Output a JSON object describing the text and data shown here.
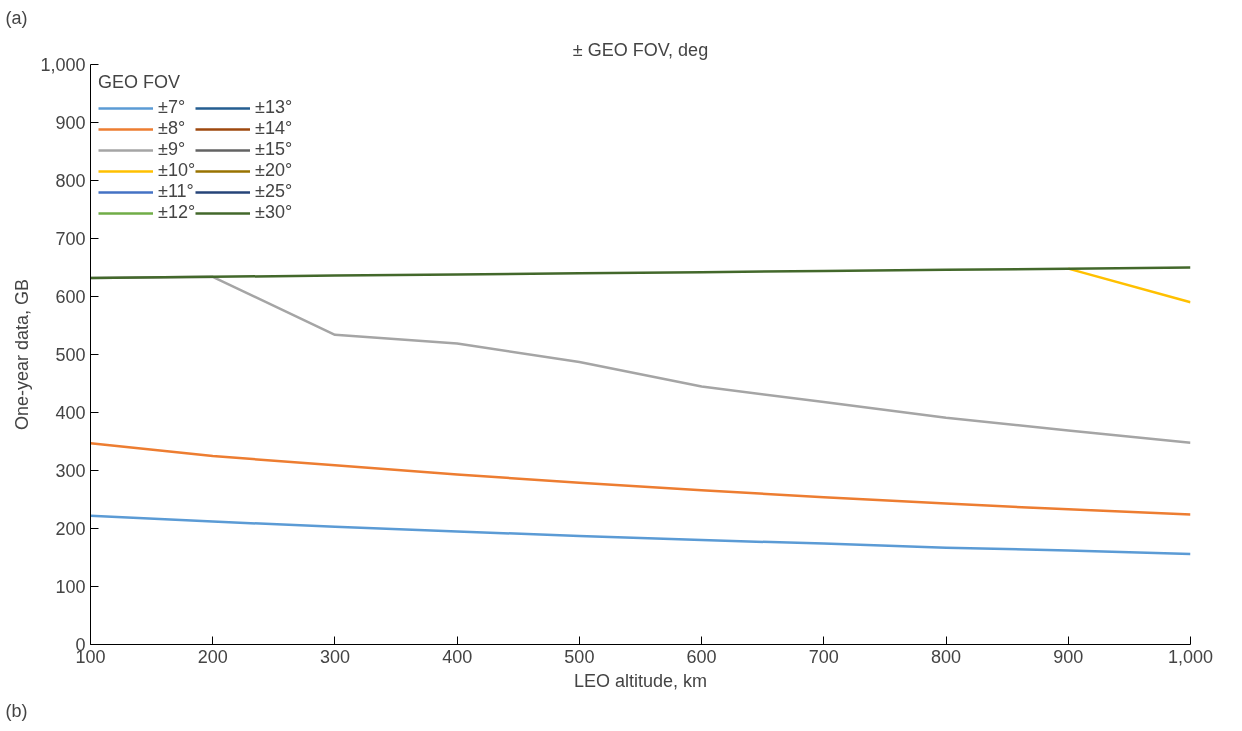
{
  "chart_data": {
    "type": "line",
    "title": "± GEO FOV, deg",
    "xlabel": "LEO altitude, km",
    "ylabel": "One-year data, GB",
    "legend_title": "GEO FOV",
    "annotations": [
      "(a)",
      "(b)"
    ],
    "x": [
      100,
      200,
      300,
      400,
      500,
      600,
      700,
      800,
      900,
      1000
    ],
    "xlim": [
      100,
      1000
    ],
    "xticks": [
      100,
      200,
      300,
      400,
      500,
      600,
      700,
      800,
      900,
      {
        "value": 1000,
        "label": "1,000"
      }
    ],
    "ylim": [
      0,
      1000
    ],
    "yticks": [
      0,
      100,
      200,
      300,
      400,
      500,
      600,
      700,
      800,
      900,
      {
        "value": 1000,
        "label": "1,000"
      }
    ],
    "grid": false,
    "legend": "top left",
    "marker": "none",
    "line_style": "solid",
    "series": [
      {
        "name": "±7°",
        "color": "#5b9bd5",
        "values": [
          222,
          212,
          203,
          195,
          187,
          180,
          174,
          167,
          162,
          156
        ]
      },
      {
        "name": "±8°",
        "color": "#ed7d31",
        "values": [
          347,
          325,
          309,
          293,
          279,
          266,
          254,
          243,
          233,
          224
        ]
      },
      {
        "name": "±9°",
        "color": "#a5a5a5",
        "values": [
          632,
          634,
          534,
          519,
          487,
          445,
          418,
          391,
          369,
          348
        ]
      },
      {
        "name": "±10°",
        "color": "#ffc000",
        "values": [
          null,
          null,
          null,
          null,
          null,
          null,
          null,
          null,
          648,
          590
        ]
      },
      {
        "name": "±11°",
        "color": "#4472c4",
        "values": [
          null,
          null,
          null,
          null,
          null,
          null,
          null,
          null,
          null,
          null
        ]
      },
      {
        "name": "±12°",
        "color": "#70ad47",
        "values": [
          null,
          null,
          null,
          null,
          null,
          null,
          null,
          null,
          null,
          null
        ]
      },
      {
        "name": "±13°",
        "color": "#255e91",
        "values": [
          null,
          null,
          null,
          null,
          null,
          null,
          null,
          null,
          null,
          null
        ]
      },
      {
        "name": "±14°",
        "color": "#9e480e",
        "values": [
          null,
          null,
          null,
          null,
          null,
          null,
          null,
          null,
          null,
          null
        ]
      },
      {
        "name": "±15°",
        "color": "#636363",
        "values": [
          null,
          null,
          null,
          null,
          null,
          null,
          null,
          null,
          null,
          null
        ]
      },
      {
        "name": "±20°",
        "color": "#997300",
        "values": [
          null,
          null,
          null,
          null,
          null,
          null,
          null,
          null,
          null,
          null
        ]
      },
      {
        "name": "±25°",
        "color": "#264478",
        "values": [
          null,
          null,
          null,
          null,
          null,
          null,
          null,
          null,
          null,
          null
        ]
      },
      {
        "name": "±30°",
        "color": "#43682b",
        "values": [
          632,
          634,
          636,
          638,
          640,
          642,
          644,
          646,
          648,
          650
        ]
      }
    ]
  }
}
